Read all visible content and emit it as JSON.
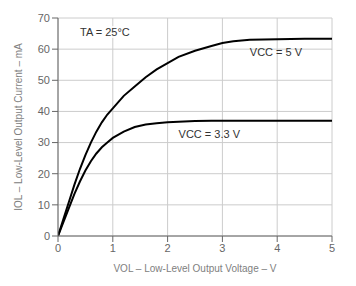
{
  "chart_data": {
    "type": "line",
    "x_label": "VOL – Low-Level Output Voltage – V",
    "y_label": "IOL – Low-Level Output Current – mA",
    "annotation": "TA = 25°C",
    "x": [
      0,
      0.1,
      0.2,
      0.3,
      0.4,
      0.5,
      0.6,
      0.7,
      0.8,
      0.9,
      1.0,
      1.2,
      1.4,
      1.6,
      1.8,
      2.0,
      2.2,
      2.5,
      2.8,
      3.0,
      3.2,
      3.5,
      4.0,
      4.5,
      5.0
    ],
    "series": [
      {
        "name": "VCC = 5 V",
        "color": "#000000",
        "values": [
          0,
          5.5,
          11,
          16.5,
          21.5,
          26,
          30,
          33.5,
          36.5,
          39,
          41,
          45,
          48,
          51,
          53.5,
          55.5,
          57.5,
          59.5,
          61,
          62,
          62.5,
          63,
          63.2,
          63.3,
          63.3
        ]
      },
      {
        "name": "VCC = 3.3 V",
        "color": "#000000",
        "values": [
          0,
          4.5,
          9,
          13.5,
          17.5,
          21,
          24,
          26.5,
          28.5,
          30,
          31.5,
          33.5,
          35,
          35.8,
          36.2,
          36.5,
          36.7,
          36.9,
          37.0,
          37.0,
          37.0,
          37.0,
          37.0,
          37.0,
          37.0
        ]
      }
    ],
    "xlim": [
      0,
      5
    ],
    "ylim": [
      0,
      70
    ],
    "xticks": [
      0,
      1,
      2,
      3,
      4,
      5
    ],
    "yticks": [
      0,
      10,
      20,
      30,
      40,
      50,
      60,
      70
    ],
    "grid": true
  }
}
